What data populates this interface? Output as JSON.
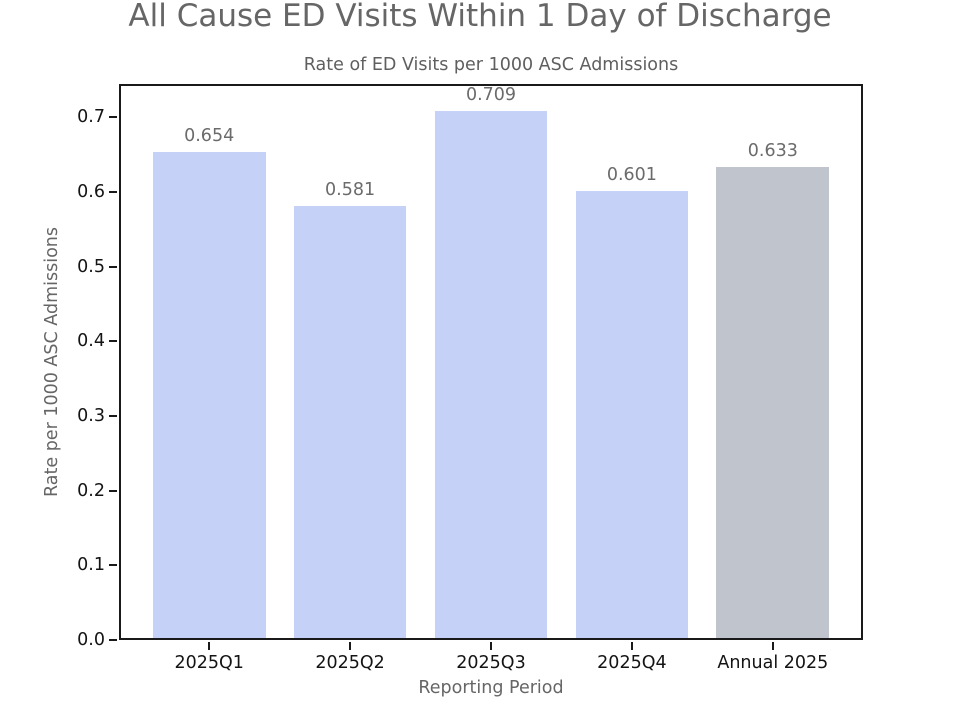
{
  "chart_data": {
    "type": "bar",
    "suptitle": "All Cause ED Visits Within 1 Day of Discharge",
    "title": "Rate of ED Visits per 1000 ASC Admissions",
    "categories": [
      "2025Q1",
      "2025Q2",
      "2025Q3",
      "2025Q4",
      "Annual 2025"
    ],
    "values": [
      0.654,
      0.581,
      0.709,
      0.601,
      0.633
    ],
    "bar_labels": [
      "0.654",
      "0.581",
      "0.709",
      "0.601",
      "0.633"
    ],
    "bar_colors": [
      "#c5d1f7",
      "#c5d1f7",
      "#c5d1f7",
      "#c5d1f7",
      "#c0c4cd"
    ],
    "xlabel": "Reporting Period",
    "ylabel": "Rate per 1000 ASC Admissions",
    "ylim": [
      0,
      0.7445
    ],
    "yticks": [
      0.0,
      0.1,
      0.2,
      0.3,
      0.4,
      0.5,
      0.6,
      0.7
    ],
    "grid": false,
    "legend": null,
    "colors": {
      "quarter_bar": "#c5d1f7",
      "annual_bar": "#c0c4cd",
      "title_text": "#666666",
      "value_label_text": "#6b6b6b",
      "tick_label_text": "#141414",
      "spine": "#1a1a1a",
      "background": "#ffffff"
    }
  }
}
